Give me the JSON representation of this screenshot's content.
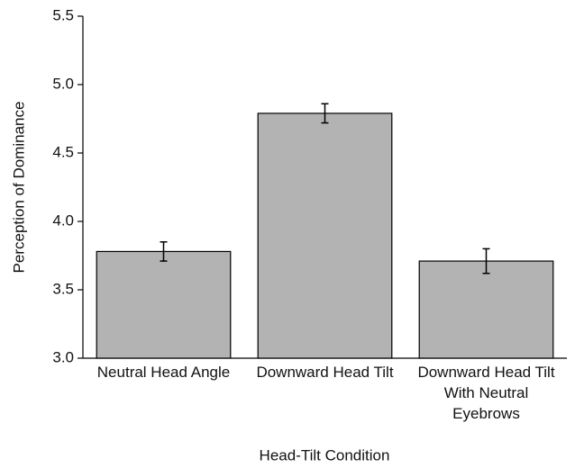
{
  "chart_data": {
    "type": "bar",
    "categories": [
      "Neutral Head Angle",
      "Downward Head Tilt",
      "Downward Head Tilt With Neutral Eyebrows"
    ],
    "values": [
      3.78,
      4.79,
      3.71
    ],
    "errors": [
      0.07,
      0.07,
      0.09
    ],
    "color": "#b3b3b3",
    "xlabel": "Head-Tilt Condition",
    "ylabel": "Perception of Dominance",
    "ylim": [
      3,
      5.5
    ],
    "yticks": [
      {
        "value": 3,
        "label": "3.0"
      },
      3.5,
      {
        "value": 4,
        "label": "4.0"
      },
      4.5,
      {
        "value": 5,
        "label": "5.0"
      },
      5.5
    ]
  }
}
